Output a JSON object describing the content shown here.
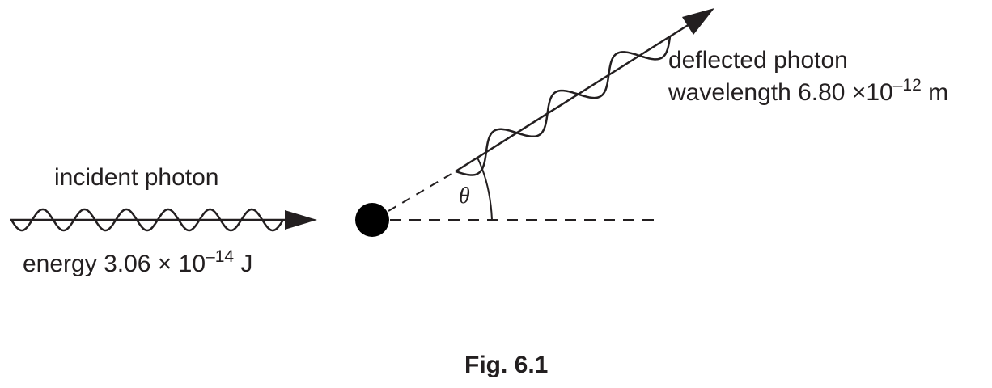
{
  "incident": {
    "title": "incident photon",
    "energy_text": "energy 3.06 × 10",
    "energy_exponent": "–14",
    "energy_unit": " J"
  },
  "deflected": {
    "title": "deflected photon",
    "wavelength_text": "wavelength 6.80 ×10",
    "wavelength_exponent": "–12",
    "wavelength_unit": " m"
  },
  "angle_symbol": "θ",
  "caption": "Fig. 6.1",
  "colors": {
    "ink": "#231f20",
    "background": "#ffffff"
  }
}
